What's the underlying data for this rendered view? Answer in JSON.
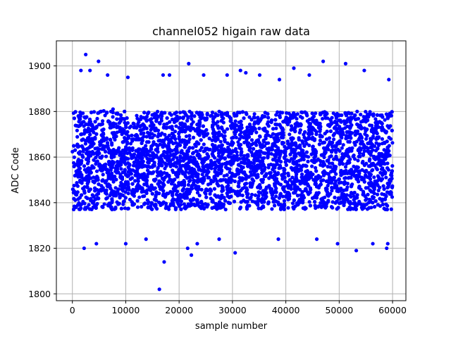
{
  "chart_data": {
    "type": "scatter",
    "title": "channel052 higain raw data",
    "xlabel": "sample number",
    "ylabel": "ADC Code",
    "xlim": [
      -3000,
      62500
    ],
    "ylim": [
      1797,
      1911
    ],
    "xticks": [
      0,
      10000,
      20000,
      30000,
      40000,
      50000,
      60000
    ],
    "yticks": [
      1800,
      1820,
      1840,
      1860,
      1880,
      1900
    ],
    "grid": true,
    "marker_color": "#0000ff",
    "marker": "circle",
    "n_samples": 60000,
    "x_range": [
      0,
      59999
    ],
    "dense_band": [
      1837,
      1880
    ],
    "outliers": [
      {
        "x": 2500,
        "y": 1905
      },
      {
        "x": 4900,
        "y": 1902
      },
      {
        "x": 1600,
        "y": 1898
      },
      {
        "x": 3300,
        "y": 1898
      },
      {
        "x": 6600,
        "y": 1896
      },
      {
        "x": 10400,
        "y": 1895
      },
      {
        "x": 17000,
        "y": 1896
      },
      {
        "x": 18200,
        "y": 1896
      },
      {
        "x": 21800,
        "y": 1901
      },
      {
        "x": 24600,
        "y": 1896
      },
      {
        "x": 29000,
        "y": 1896
      },
      {
        "x": 31500,
        "y": 1898
      },
      {
        "x": 32500,
        "y": 1897
      },
      {
        "x": 35100,
        "y": 1896
      },
      {
        "x": 38800,
        "y": 1894
      },
      {
        "x": 41500,
        "y": 1899
      },
      {
        "x": 44400,
        "y": 1896
      },
      {
        "x": 47000,
        "y": 1902
      },
      {
        "x": 51200,
        "y": 1901
      },
      {
        "x": 54700,
        "y": 1898
      },
      {
        "x": 59300,
        "y": 1894
      },
      {
        "x": 16300,
        "y": 1802
      },
      {
        "x": 17200,
        "y": 1814
      },
      {
        "x": 30500,
        "y": 1818
      },
      {
        "x": 2200,
        "y": 1820
      },
      {
        "x": 21600,
        "y": 1820
      },
      {
        "x": 22300,
        "y": 1817
      },
      {
        "x": 10000,
        "y": 1822
      },
      {
        "x": 4500,
        "y": 1822
      },
      {
        "x": 23400,
        "y": 1822
      },
      {
        "x": 49700,
        "y": 1822
      },
      {
        "x": 53200,
        "y": 1819
      },
      {
        "x": 58900,
        "y": 1820
      },
      {
        "x": 59100,
        "y": 1822
      },
      {
        "x": 56300,
        "y": 1822
      },
      {
        "x": 38600,
        "y": 1824
      },
      {
        "x": 27500,
        "y": 1824
      },
      {
        "x": 13800,
        "y": 1824
      },
      {
        "x": 45800,
        "y": 1824
      }
    ],
    "ytick_labels": [
      "1800",
      "1820",
      "1840",
      "1860",
      "1880",
      "1900"
    ],
    "xtick_labels": [
      "0",
      "10000",
      "20000",
      "30000",
      "40000",
      "50000",
      "60000"
    ]
  }
}
